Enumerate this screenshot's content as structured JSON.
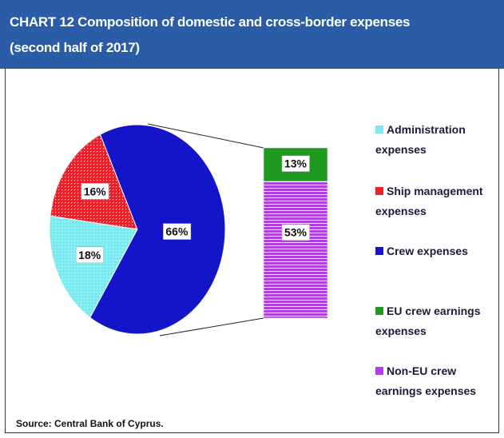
{
  "chart_data": {
    "type": "pie",
    "title": "CHART 12  Composition of domestic and cross-border expenses",
    "subtitle": "(second half of 2017)",
    "categories": [
      "Administration expenses",
      "Ship management expenses",
      "Crew expenses"
    ],
    "values": [
      18,
      16,
      66
    ],
    "value_labels": [
      "18%",
      "16%",
      "66%"
    ],
    "colors": [
      "#7ee8ef",
      "#e8212a",
      "#1414c8"
    ],
    "breakdown": {
      "type": "bar",
      "categories": [
        "EU crew earnings expenses",
        "Non-EU crew earnings  expenses"
      ],
      "values": [
        13,
        53
      ],
      "value_labels": [
        "13%",
        "53%"
      ],
      "colors": [
        "#1f9a1f",
        "#b23ee0"
      ]
    },
    "source": "Source: Central Bank of Cyprus."
  }
}
